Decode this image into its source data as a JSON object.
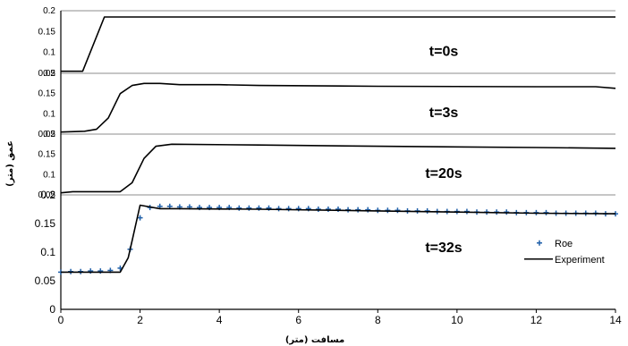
{
  "chart_data": {
    "type": "line",
    "xlabel": "مسافت (متر)",
    "ylabel": "عمق (متر)",
    "xlim": [
      0,
      14
    ],
    "x_ticks": [
      "0",
      "2",
      "4",
      "6",
      "8",
      "10",
      "12",
      "14"
    ],
    "panels": [
      {
        "time_label": "t=0s",
        "ylim": [
          0.05,
          0.2
        ],
        "y_ticks": [
          "0.05",
          "0.1",
          "0.15",
          "0.2"
        ],
        "series": [
          {
            "style": "line",
            "color": "#000000",
            "x": [
              0,
              0.55,
              1.1,
              14
            ],
            "y": [
              0.055,
              0.055,
              0.185,
              0.185
            ]
          }
        ]
      },
      {
        "time_label": "t=3s",
        "ylim": [
          0.05,
          0.2
        ],
        "y_ticks": [
          "0.05",
          "0.1",
          "0.15",
          "0.2"
        ],
        "series": [
          {
            "style": "line",
            "color": "#000000",
            "x": [
              0,
              0.6,
              0.9,
              1.2,
              1.5,
              1.8,
              2.1,
              2.5,
              3.0,
              4.0,
              5.0,
              8.0,
              12.0,
              13.5,
              14.0
            ],
            "y": [
              0.055,
              0.057,
              0.062,
              0.09,
              0.15,
              0.17,
              0.175,
              0.175,
              0.172,
              0.172,
              0.17,
              0.168,
              0.167,
              0.167,
              0.163
            ]
          }
        ]
      },
      {
        "time_label": "t=20s",
        "ylim": [
          0.05,
          0.2
        ],
        "y_ticks": [
          "0.05",
          "0.1",
          "0.15",
          "0.2"
        ],
        "series": [
          {
            "style": "line",
            "color": "#000000",
            "x": [
              0,
              0.3,
              1.5,
              1.8,
              2.1,
              2.4,
              2.8,
              5.0,
              8.0,
              12.0,
              14.0
            ],
            "y": [
              0.055,
              0.058,
              0.058,
              0.08,
              0.14,
              0.17,
              0.175,
              0.173,
              0.17,
              0.167,
              0.165
            ]
          }
        ]
      },
      {
        "time_label": "t=32s",
        "ylim": [
          0,
          0.2
        ],
        "y_ticks": [
          "0",
          "0.05",
          "0.1",
          "0.15",
          "0.2"
        ],
        "legend_position": "right",
        "series": [
          {
            "name": "Roe",
            "style": "markers",
            "marker": "+",
            "color": "#1f5fa8",
            "x": [
              0,
              0.25,
              0.5,
              0.75,
              1.0,
              1.25,
              1.5,
              1.75,
              2.0,
              2.25,
              2.5,
              2.75,
              3.0,
              3.25,
              3.5,
              3.75,
              4.0,
              4.25,
              4.5,
              4.75,
              5.0,
              5.25,
              5.5,
              5.75,
              6.0,
              6.25,
              6.5,
              6.75,
              7.0,
              7.25,
              7.5,
              7.75,
              8.0,
              8.25,
              8.5,
              8.75,
              9.0,
              9.25,
              9.5,
              9.75,
              10.0,
              10.25,
              10.5,
              10.75,
              11.0,
              11.25,
              11.5,
              11.75,
              12.0,
              12.25,
              12.5,
              12.75,
              13.0,
              13.25,
              13.5,
              13.75,
              14.0
            ],
            "y": [
              0.065,
              0.066,
              0.066,
              0.067,
              0.067,
              0.068,
              0.072,
              0.105,
              0.16,
              0.178,
              0.18,
              0.18,
              0.179,
              0.179,
              0.178,
              0.178,
              0.178,
              0.178,
              0.177,
              0.177,
              0.177,
              0.177,
              0.176,
              0.176,
              0.176,
              0.176,
              0.175,
              0.175,
              0.175,
              0.174,
              0.174,
              0.174,
              0.173,
              0.173,
              0.173,
              0.172,
              0.172,
              0.172,
              0.171,
              0.171,
              0.171,
              0.171,
              0.17,
              0.17,
              0.17,
              0.17,
              0.169,
              0.169,
              0.169,
              0.169,
              0.168,
              0.168,
              0.168,
              0.168,
              0.168,
              0.167,
              0.167
            ]
          },
          {
            "name": "Experiment",
            "style": "line",
            "color": "#000000",
            "x": [
              0,
              1.5,
              1.7,
              1.8,
              2.0,
              2.5,
              3.0,
              5.0,
              8.0,
              10.0,
              12.0,
              14.0
            ],
            "y": [
              0.065,
              0.065,
              0.09,
              0.12,
              0.182,
              0.176,
              0.176,
              0.175,
              0.172,
              0.17,
              0.168,
              0.167
            ]
          }
        ]
      }
    ]
  }
}
